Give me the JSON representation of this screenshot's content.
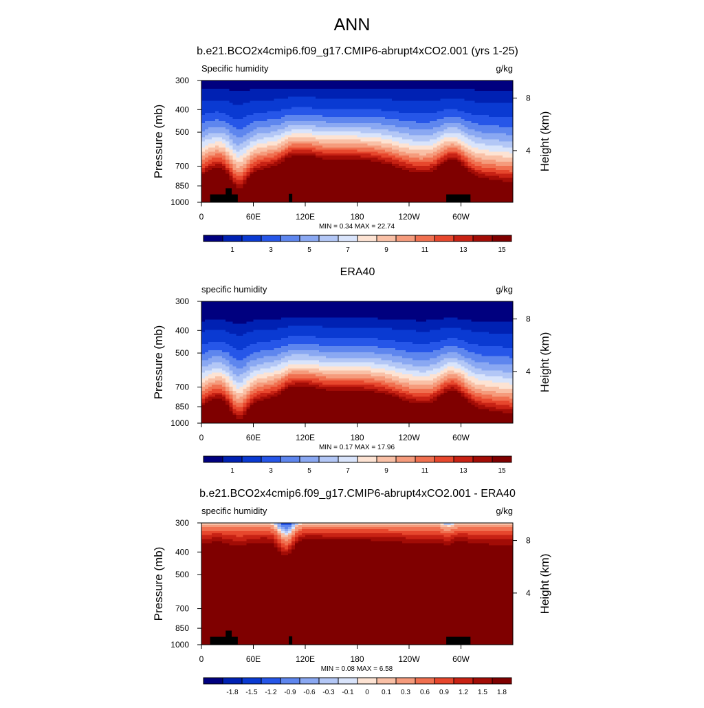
{
  "figure_title": "ANN",
  "chart_data": [
    {
      "type": "heatmap",
      "title": "b.e21.BCO2x4cmip6.f09_g17.CMIP6-abrupt4xCO2.001 (yrs 1-25)",
      "left_string": "Specific humidity",
      "right_string": "g/kg",
      "ylabel": "Pressure (mb)",
      "ylabel_right": "Height (km)",
      "x_ticks": [
        "0",
        "60E",
        "120E",
        "180",
        "120W",
        "60W"
      ],
      "x_tick_lon": [
        0,
        60,
        120,
        180,
        240,
        300
      ],
      "xlim": [
        0,
        360
      ],
      "y_ticks": [
        300,
        400,
        500,
        700,
        850,
        1000
      ],
      "ylim": [
        1000,
        300
      ],
      "y_log": true,
      "height_ticks": [
        "8",
        "4"
      ],
      "height_tick_pressure": [
        357,
        600
      ],
      "min_label": "MIN =   0.34  MAX =  22.74",
      "field": "model",
      "palette": "full",
      "colorbar_labels": [
        "1",
        "3",
        "5",
        "7",
        "9",
        "11",
        "13",
        "15"
      ],
      "colorbar_label_bins": [
        1,
        3,
        5,
        7,
        9,
        11,
        13,
        15
      ],
      "terrain": [
        {
          "lon": [
            10,
            42
          ],
          "p_top": 925
        },
        {
          "lon": [
            28,
            35
          ],
          "p_top": 870
        },
        {
          "lon": [
            101,
            105
          ],
          "p_top": 920
        },
        {
          "lon": [
            283,
            311
          ],
          "p_top": 925
        }
      ]
    },
    {
      "type": "heatmap",
      "title": "ERA40",
      "left_string": "specific humidity",
      "right_string": "g/kg",
      "ylabel": "Pressure (mb)",
      "ylabel_right": "Height (km)",
      "x_ticks": [
        "0",
        "60E",
        "120E",
        "180",
        "120W",
        "60W"
      ],
      "x_tick_lon": [
        0,
        60,
        120,
        180,
        240,
        300
      ],
      "xlim": [
        0,
        360
      ],
      "y_ticks": [
        300,
        400,
        500,
        700,
        850,
        1000
      ],
      "ylim": [
        1000,
        300
      ],
      "y_log": true,
      "height_ticks": [
        "8",
        "4"
      ],
      "height_tick_pressure": [
        357,
        600
      ],
      "min_label": "MIN =   0.17  MAX =  17.96",
      "field": "era",
      "palette": "full",
      "colorbar_labels": [
        "1",
        "3",
        "5",
        "7",
        "9",
        "11",
        "13",
        "15"
      ],
      "colorbar_label_bins": [
        1,
        3,
        5,
        7,
        9,
        11,
        13,
        15
      ],
      "terrain": []
    },
    {
      "type": "heatmap",
      "title": "b.e21.BCO2x4cmip6.f09_g17.CMIP6-abrupt4xCO2.001 - ERA40",
      "left_string": "specific humidity",
      "right_string": "g/kg",
      "ylabel": "Pressure (mb)",
      "ylabel_right": "Height (km)",
      "x_ticks": [
        "0",
        "60E",
        "120E",
        "180",
        "120W",
        "60W"
      ],
      "x_tick_lon": [
        0,
        60,
        120,
        180,
        240,
        300
      ],
      "xlim": [
        0,
        360
      ],
      "y_ticks": [
        300,
        400,
        500,
        700,
        850,
        1000
      ],
      "ylim": [
        1000,
        300
      ],
      "y_log": true,
      "height_ticks": [
        "8",
        "4"
      ],
      "height_tick_pressure": [
        357,
        600
      ],
      "min_label": "MIN =   0.08  MAX =   6.58",
      "field": "diff",
      "palette": "full",
      "colorbar_labels": [
        "-1.8",
        "-1.5",
        "-1.2",
        "-0.9",
        "-0.6",
        "-0.3",
        "-0.1",
        "0",
        "0.1",
        "0.3",
        "0.6",
        "0.9",
        "1.2",
        "1.5",
        "1.8"
      ],
      "colorbar_label_bins": [
        1,
        2,
        3,
        4,
        5,
        6,
        7,
        8,
        9,
        10,
        11,
        12,
        13,
        14,
        15
      ],
      "diff_levels": [
        -1.8,
        -1.5,
        -1.2,
        -0.9,
        -0.6,
        -0.3,
        -0.1,
        0,
        0.1,
        0.3,
        0.6,
        0.9,
        1.2,
        1.5,
        1.8
      ],
      "terrain": [
        {
          "lon": [
            10,
            42
          ],
          "p_top": 925
        },
        {
          "lon": [
            28,
            35
          ],
          "p_top": 870
        },
        {
          "lon": [
            101,
            105
          ],
          "p_top": 920
        },
        {
          "lon": [
            283,
            311
          ],
          "p_top": 925
        }
      ]
    }
  ],
  "colors": {
    "palette": [
      "#00007f",
      "#0021b3",
      "#0a3ad2",
      "#2656e8",
      "#5e86ee",
      "#8aa8f2",
      "#b3c7f6",
      "#d9e4fb",
      "#fde3d3",
      "#f9c0a6",
      "#f59b7c",
      "#f07050",
      "#e7472d",
      "#c82214",
      "#a20c06",
      "#7f0000"
    ],
    "terrain": "#000000"
  }
}
